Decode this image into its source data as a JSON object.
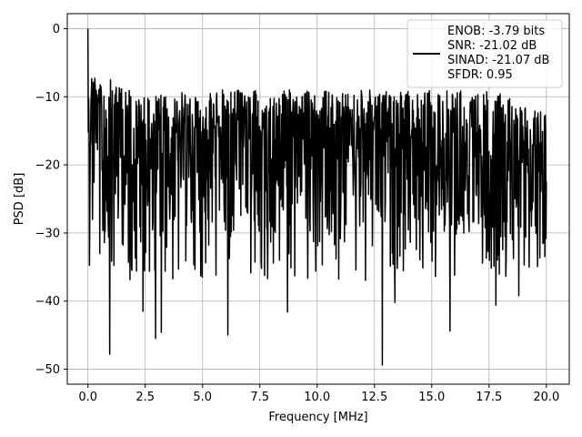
{
  "chart_data": {
    "type": "line",
    "xlabel": "Frequency [MHz]",
    "ylabel": "PSD [dB]",
    "xlim": [
      -0.9,
      21.0
    ],
    "ylim": [
      -52.2,
      2.2
    ],
    "xticks": [
      0.0,
      2.5,
      5.0,
      7.5,
      10.0,
      12.5,
      15.0,
      17.5,
      20.0
    ],
    "xtick_labels": [
      "0.0",
      "2.5",
      "5.0",
      "7.5",
      "10.0",
      "12.5",
      "15.0",
      "17.5",
      "20.0"
    ],
    "yticks": [
      0,
      -10,
      -20,
      -30,
      -40,
      -50
    ],
    "ytick_labels": [
      "0",
      "−10",
      "−20",
      "−30",
      "−40",
      "−50"
    ],
    "grid": true,
    "legend_position": "top-right",
    "series": [
      {
        "color": "#000000",
        "x_start": 0.0,
        "x_end": 20.0,
        "points": 1200,
        "values_description_free": true,
        "peak": {
          "x": 0.0,
          "y": 0.0
        },
        "upper_envelope": {
          "x": [
            0.1,
            2.5,
            5.0,
            7.5,
            10.0,
            12.5,
            15.0,
            17.5,
            20.0
          ],
          "y": [
            -6,
            -10,
            -9,
            -9,
            -9,
            -9,
            -9,
            -9,
            -12
          ]
        },
        "baseline": -20,
        "dips": [
          {
            "x": 0.95,
            "y": -47.8
          },
          {
            "x": 2.95,
            "y": -45.5
          },
          {
            "x": 3.2,
            "y": -44.6
          },
          {
            "x": 2.4,
            "y": -41.5
          },
          {
            "x": 6.1,
            "y": -45.0
          },
          {
            "x": 8.7,
            "y": -41.6
          },
          {
            "x": 12.85,
            "y": -49.4
          },
          {
            "x": 13.4,
            "y": -40.2
          },
          {
            "x": 15.8,
            "y": -44.4
          },
          {
            "x": 17.8,
            "y": -40.6
          },
          {
            "x": 18.8,
            "y": -39.2
          }
        ]
      }
    ],
    "legend": {
      "lines": [
        "ENOB: -3.79 bits",
        "SNR: -21.02 dB",
        "SINAD: -21.07 dB",
        "SFDR: 0.95"
      ]
    }
  }
}
